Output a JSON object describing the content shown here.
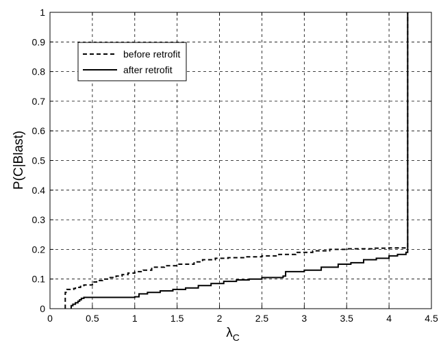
{
  "chart_data": {
    "type": "line",
    "title": "",
    "xlabel": "λ",
    "xlabel_sub": "C",
    "ylabel": "P(C|Blast)",
    "xlim": [
      0,
      4.5
    ],
    "ylim": [
      0,
      1
    ],
    "x_ticks": [
      "0",
      "0.5",
      "1",
      "1.5",
      "2",
      "2.5",
      "3",
      "3.5",
      "4",
      "4.5"
    ],
    "y_ticks": [
      "0",
      "0.1",
      "0.2",
      "0.3",
      "0.4",
      "0.5",
      "0.6",
      "0.7",
      "0.8",
      "0.9",
      "1"
    ],
    "grid": true,
    "legend_position": "top-left",
    "series": [
      {
        "name": "before retrofit",
        "style": "dashed",
        "color": "#000000",
        "x": [
          0.18,
          0.18,
          0.2,
          0.28,
          0.3,
          0.36,
          0.4,
          0.5,
          0.55,
          0.62,
          0.7,
          0.78,
          0.85,
          0.92,
          1.0,
          1.1,
          1.2,
          1.35,
          1.5,
          1.7,
          1.8,
          1.95,
          2.1,
          2.3,
          2.5,
          2.7,
          2.9,
          3.1,
          3.3,
          3.5,
          3.8,
          4.0,
          4.2,
          4.22,
          4.22
        ],
        "y": [
          0.0,
          0.055,
          0.065,
          0.068,
          0.072,
          0.075,
          0.08,
          0.09,
          0.095,
          0.1,
          0.105,
          0.11,
          0.115,
          0.12,
          0.125,
          0.13,
          0.14,
          0.145,
          0.15,
          0.158,
          0.165,
          0.17,
          0.172,
          0.175,
          0.178,
          0.183,
          0.19,
          0.195,
          0.2,
          0.202,
          0.204,
          0.205,
          0.207,
          0.21,
          1.0
        ]
      },
      {
        "name": "after retrofit",
        "style": "solid",
        "color": "#000000",
        "x": [
          0.25,
          0.25,
          0.27,
          0.3,
          0.33,
          0.35,
          0.37,
          0.4,
          1.0,
          1.05,
          1.15,
          1.3,
          1.45,
          1.6,
          1.75,
          1.9,
          2.05,
          2.2,
          2.35,
          2.5,
          2.75,
          2.78,
          3.0,
          3.2,
          3.4,
          3.55,
          3.7,
          3.85,
          4.0,
          4.1,
          4.2,
          4.22,
          4.22
        ],
        "y": [
          0.0,
          0.01,
          0.015,
          0.02,
          0.025,
          0.03,
          0.035,
          0.038,
          0.04,
          0.05,
          0.055,
          0.06,
          0.065,
          0.07,
          0.078,
          0.085,
          0.092,
          0.097,
          0.1,
          0.105,
          0.11,
          0.125,
          0.13,
          0.14,
          0.15,
          0.155,
          0.165,
          0.17,
          0.178,
          0.183,
          0.19,
          0.2,
          1.0
        ]
      }
    ]
  }
}
